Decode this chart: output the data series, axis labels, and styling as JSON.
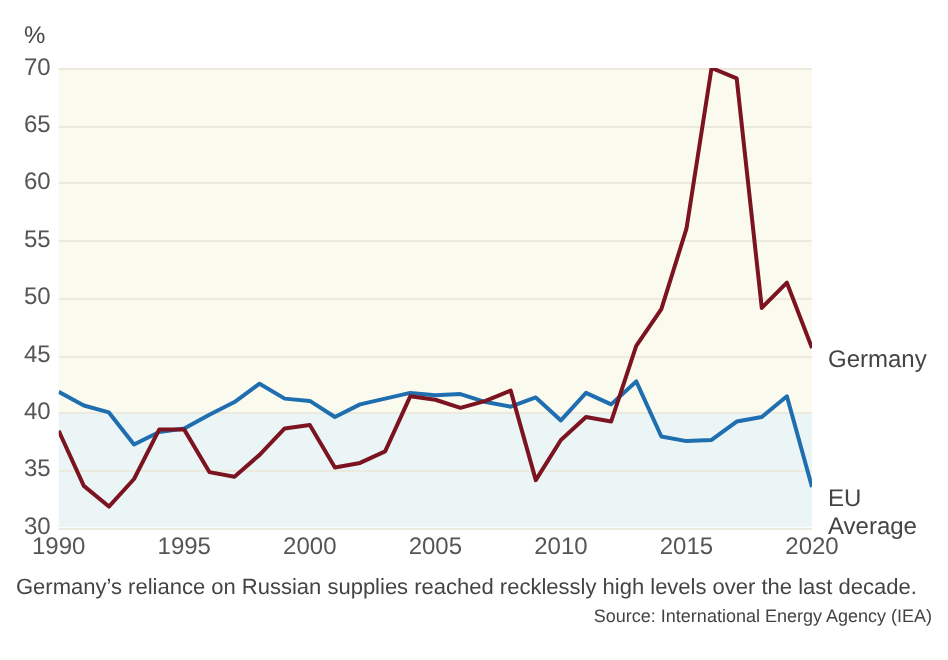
{
  "chart_data": {
    "type": "line",
    "ylabel": "%",
    "x": [
      1990,
      1991,
      1992,
      1993,
      1994,
      1995,
      1996,
      1997,
      1998,
      1999,
      2000,
      2001,
      2002,
      2003,
      2004,
      2005,
      2006,
      2007,
      2008,
      2009,
      2010,
      2011,
      2012,
      2013,
      2014,
      2015,
      2016,
      2017,
      2018,
      2019,
      2020
    ],
    "series": [
      {
        "name": "Germany",
        "color": "#7b1420",
        "values": [
          38.4,
          33.6,
          31.8,
          34.2,
          38.5,
          38.5,
          34.8,
          34.4,
          36.3,
          38.6,
          38.9,
          35.2,
          35.6,
          36.6,
          41.4,
          41.1,
          40.4,
          41.0,
          41.9,
          34.1,
          37.6,
          39.6,
          39.2,
          45.8,
          49.0,
          56.0,
          70.0,
          69.1,
          49.1,
          51.3,
          45.6
        ]
      },
      {
        "name": "EU Average",
        "color": "#1f6fb0",
        "values": [
          41.8,
          40.6,
          40.0,
          37.2,
          38.3,
          38.6,
          39.8,
          40.9,
          42.5,
          41.2,
          41.0,
          39.6,
          40.7,
          41.2,
          41.7,
          41.5,
          41.6,
          40.9,
          40.5,
          41.3,
          39.3,
          41.7,
          40.7,
          42.7,
          37.9,
          37.5,
          37.6,
          39.2,
          39.6,
          41.4,
          33.5
        ]
      }
    ],
    "xlim": [
      1990,
      2020
    ],
    "xticks": [
      1990,
      1995,
      2000,
      2005,
      2010,
      2015,
      2020
    ],
    "ylim": [
      30,
      70
    ],
    "yticks": [
      30,
      35,
      40,
      45,
      50,
      55,
      60,
      65,
      70
    ],
    "grid": "y",
    "legend": false,
    "marker": "none",
    "line_style": "solid",
    "bands": [
      {
        "axis": "y",
        "from": 30,
        "to": 40,
        "color": "#ebf5f6"
      },
      {
        "axis": "y",
        "from": 40,
        "to": 70,
        "color": "#fbfaee"
      }
    ],
    "annotations": [
      "Germany’s reliance on Russian supplies reached recklessly high levels over the last decade.",
      "Source: International Energy Agency (IEA)"
    ]
  }
}
